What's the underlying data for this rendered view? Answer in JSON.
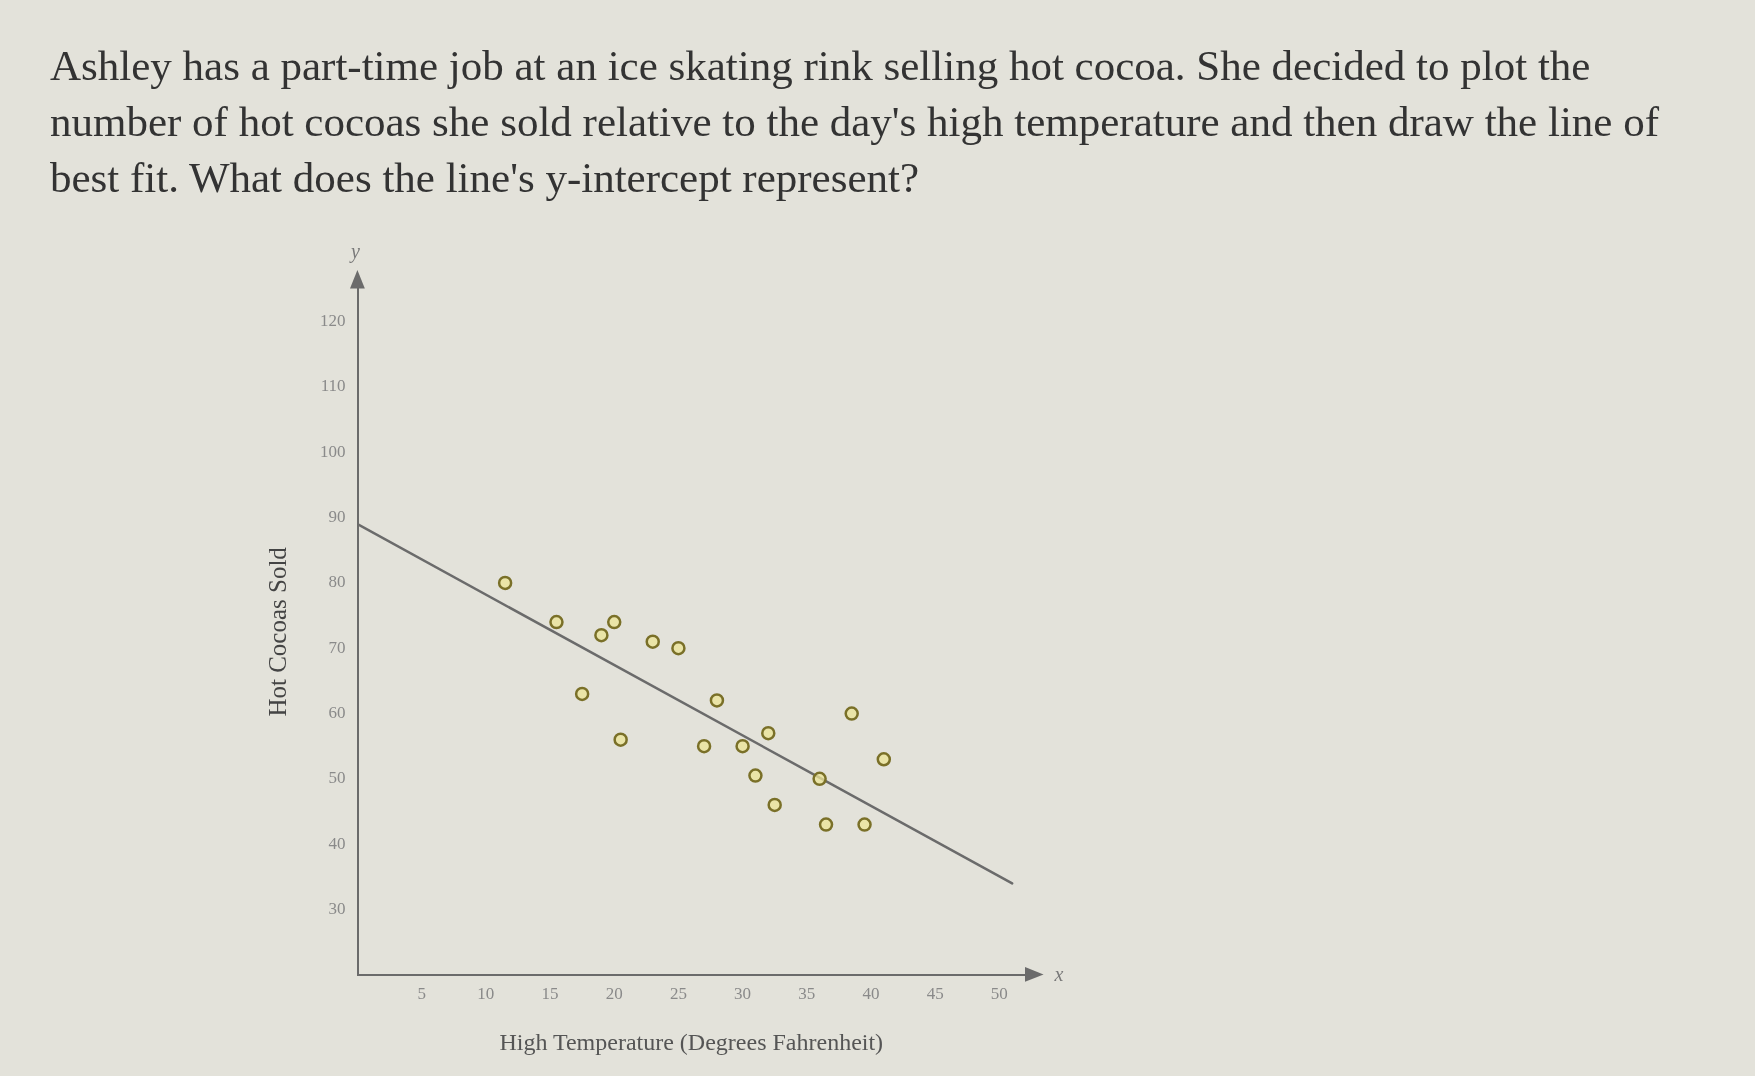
{
  "chart_data": {
    "type": "scatter",
    "title": "Ashley has a part-time job at an ice skating rink selling hot cocoa. She decided to plot the number of hot cocoas she sold relative to the day's high temperature and then draw the line of best fit. What does the line's y-intercept represent?",
    "xlabel": "High Temperature (Degrees Fahrenheit)",
    "ylabel": "Hot Cocoas Sold",
    "annotations": [
      "y",
      "x"
    ],
    "series": [
      {
        "type": "scatter",
        "color": "#7a7028",
        "marker": "circle",
        "x": [
          11.5,
          15.5,
          19,
          20,
          23,
          25,
          17.5,
          28,
          38.5,
          20.5,
          27,
          30,
          32,
          41,
          31,
          36,
          32.5,
          36.5,
          39.5
        ],
        "values": [
          80,
          74,
          72,
          74,
          71,
          70,
          63,
          62,
          60,
          56,
          55,
          55,
          57,
          53,
          50.5,
          50,
          46,
          43,
          43
        ]
      },
      {
        "type": "line",
        "color": "#6b6b6b",
        "marker": "none",
        "x": [
          0,
          51
        ],
        "values": [
          89,
          34
        ]
      }
    ],
    "xlim": [
      0,
      52
    ],
    "xticks": [
      5,
      10,
      15,
      20,
      25,
      30,
      35,
      40,
      45,
      50
    ],
    "ylim": [
      20,
      125
    ],
    "yticks": [
      30,
      40,
      50,
      60,
      70,
      80,
      90,
      100,
      110,
      120
    ]
  }
}
